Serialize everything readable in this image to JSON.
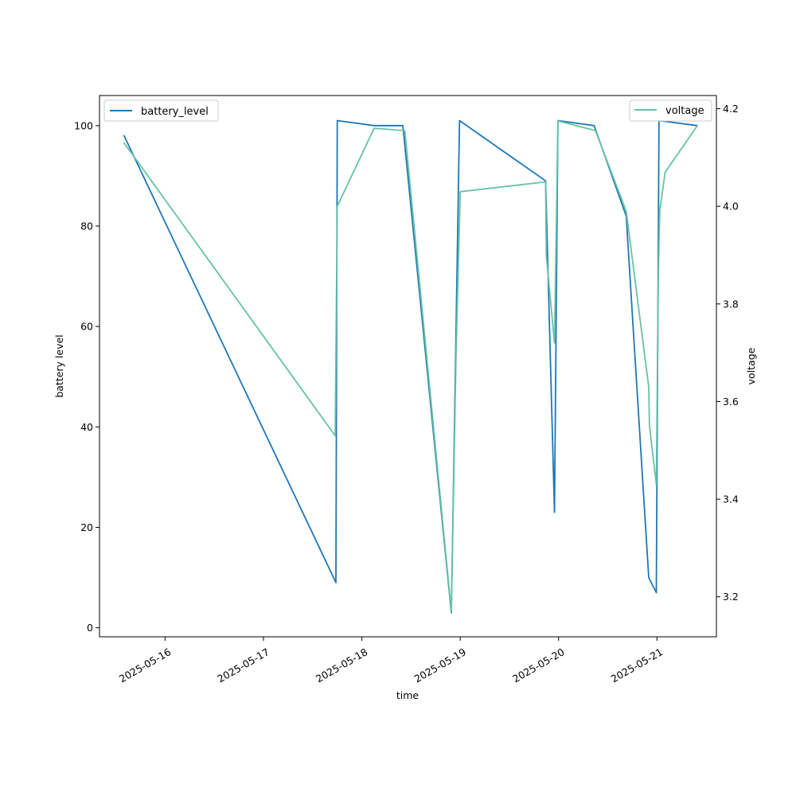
{
  "chart_data": {
    "type": "line",
    "xlabel": "time",
    "ylabel_left": "battery level",
    "ylabel_right": "voltage",
    "x_ticks": [
      "2025-05-16",
      "2025-05-17",
      "2025-05-18",
      "2025-05-19",
      "2025-05-20",
      "2025-05-21"
    ],
    "y_left_ticks": [
      "0",
      "20",
      "40",
      "60",
      "80",
      "100"
    ],
    "y_right_ticks": [
      "3.2",
      "3.4",
      "3.6",
      "3.8",
      "4.0",
      "4.2"
    ],
    "y_left_lim": [
      -1.8,
      106
    ],
    "y_right_lim": [
      3.118,
      4.227
    ],
    "x_lim": [
      "2025-05-15 08:00",
      "2025-05-21 14:30"
    ],
    "grid": false,
    "series": [
      {
        "name": "battery_level",
        "axis": "left",
        "color": "#1f77b4",
        "legend_position": "upper-left",
        "points": [
          [
            "2025-05-15 14:00",
            98
          ],
          [
            "2025-05-17 17:40",
            9
          ],
          [
            "2025-05-17 18:00",
            101
          ],
          [
            "2025-05-18 03:00",
            100
          ],
          [
            "2025-05-18 10:00",
            100
          ],
          [
            "2025-05-18 21:50",
            3
          ],
          [
            "2025-05-18 23:50",
            101
          ],
          [
            "2025-05-19 20:50",
            89
          ],
          [
            "2025-05-19 23:00",
            23
          ],
          [
            "2025-05-19 23:50",
            101
          ],
          [
            "2025-05-20 08:40",
            100
          ],
          [
            "2025-05-20 16:30",
            82
          ],
          [
            "2025-05-20 22:00",
            10
          ],
          [
            "2025-05-20 23:50",
            7
          ],
          [
            "2025-05-21 00:30",
            101
          ],
          [
            "2025-05-21 09:50",
            100
          ]
        ]
      },
      {
        "name": "voltage",
        "axis": "right",
        "color": "#66c2a5",
        "legend_position": "upper-right",
        "points": [
          [
            "2025-05-15 14:00",
            4.13
          ],
          [
            "2025-05-17 17:30",
            3.53
          ],
          [
            "2025-05-17 18:00",
            4.0
          ],
          [
            "2025-05-18 03:00",
            4.16
          ],
          [
            "2025-05-18 10:30",
            4.155
          ],
          [
            "2025-05-18 21:50",
            3.17
          ],
          [
            "2025-05-18 23:00",
            3.7
          ],
          [
            "2025-05-19 00:00",
            4.03
          ],
          [
            "2025-05-19 20:50",
            4.05
          ],
          [
            "2025-05-19 21:00",
            3.9
          ],
          [
            "2025-05-19 23:00",
            3.72
          ],
          [
            "2025-05-19 23:50",
            4.175
          ],
          [
            "2025-05-20 09:00",
            4.155
          ],
          [
            "2025-05-20 16:30",
            3.99
          ],
          [
            "2025-05-20 22:00",
            3.63
          ],
          [
            "2025-05-20 22:10",
            3.55
          ],
          [
            "2025-05-20 23:50",
            3.43
          ],
          [
            "2025-05-21 00:20",
            3.85
          ],
          [
            "2025-05-21 00:40",
            3.99
          ],
          [
            "2025-05-21 02:00",
            4.07
          ],
          [
            "2025-05-21 09:50",
            4.165
          ]
        ]
      }
    ]
  }
}
